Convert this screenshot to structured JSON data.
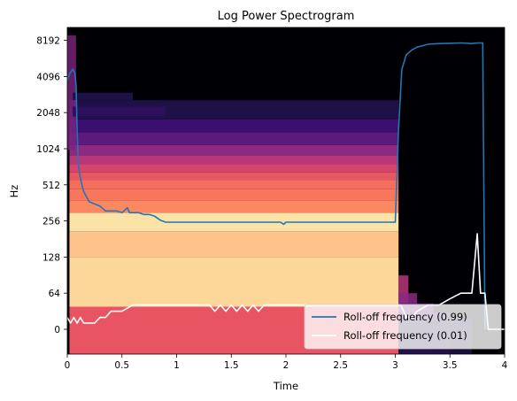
{
  "chart_data": {
    "type": "heatmap",
    "title": "Log Power Spectrogram",
    "xlabel": "Time",
    "ylabel": "Hz",
    "xlim": [
      0,
      4
    ],
    "y_scale": "symlog",
    "x_ticks": [
      0,
      0.5,
      1,
      1.5,
      2,
      2.5,
      3,
      3.5,
      4
    ],
    "x_tick_labels": [
      "0",
      "0.5",
      "1",
      "1.5",
      "2",
      "2.5",
      "3",
      "3.5",
      "4"
    ],
    "y_ticks": [
      0,
      64,
      128,
      256,
      512,
      1024,
      2048,
      4096,
      8192
    ],
    "y_tick_labels": [
      "0",
      "64",
      "128",
      "256",
      "512",
      "1024",
      "2048",
      "4096",
      "8192"
    ],
    "colormap": "magma",
    "legend": {
      "placement": "lower-right"
    },
    "series": [
      {
        "name": "Roll-off frequency (0.99)",
        "color": "#1f77b4",
        "x": [
          0,
          0.02,
          0.05,
          0.07,
          0.08,
          0.09,
          0.1,
          0.12,
          0.15,
          0.18,
          0.2,
          0.25,
          0.3,
          0.35,
          0.4,
          0.45,
          0.5,
          0.55,
          0.57,
          0.6,
          0.65,
          0.7,
          0.75,
          0.8,
          0.85,
          0.9,
          1.0,
          1.5,
          1.95,
          1.98,
          2.0,
          2.5,
          3.0,
          3.03,
          3.06,
          3.1,
          3.15,
          3.2,
          3.25,
          3.3,
          3.4,
          3.5,
          3.6,
          3.7,
          3.75,
          3.8,
          3.82
        ],
        "values": [
          3800,
          4300,
          4700,
          4400,
          3500,
          1500,
          780,
          580,
          450,
          400,
          370,
          355,
          340,
          310,
          310,
          310,
          300,
          330,
          300,
          300,
          300,
          290,
          290,
          280,
          260,
          250,
          250,
          250,
          250,
          240,
          250,
          250,
          250,
          1500,
          4700,
          6200,
          6800,
          7200,
          7400,
          7600,
          7700,
          7750,
          7800,
          7700,
          7800,
          7800,
          0
        ]
      },
      {
        "name": "Roll-off frequency (0.01)",
        "color": "#ffffff",
        "x": [
          0,
          0.03,
          0.06,
          0.09,
          0.12,
          0.15,
          0.2,
          0.25,
          0.3,
          0.35,
          0.4,
          0.5,
          0.6,
          0.7,
          1.0,
          1.3,
          1.35,
          1.4,
          1.45,
          1.5,
          1.55,
          1.6,
          1.65,
          1.7,
          1.75,
          1.8,
          1.85,
          2.0,
          2.5,
          3.0,
          3.05,
          3.1,
          3.15,
          3.2,
          3.3,
          3.4,
          3.5,
          3.6,
          3.7,
          3.75,
          3.78,
          3.82,
          3.85,
          4.0
        ],
        "values": [
          21,
          11,
          21,
          11,
          21,
          11,
          11,
          11,
          21,
          21,
          32,
          32,
          43,
          43,
          43,
          43,
          32,
          43,
          32,
          43,
          32,
          43,
          32,
          43,
          32,
          43,
          43,
          43,
          43,
          43,
          43,
          21,
          21,
          32,
          43,
          43,
          54,
          64,
          64,
          200,
          64,
          64,
          0,
          0
        ]
      }
    ]
  }
}
